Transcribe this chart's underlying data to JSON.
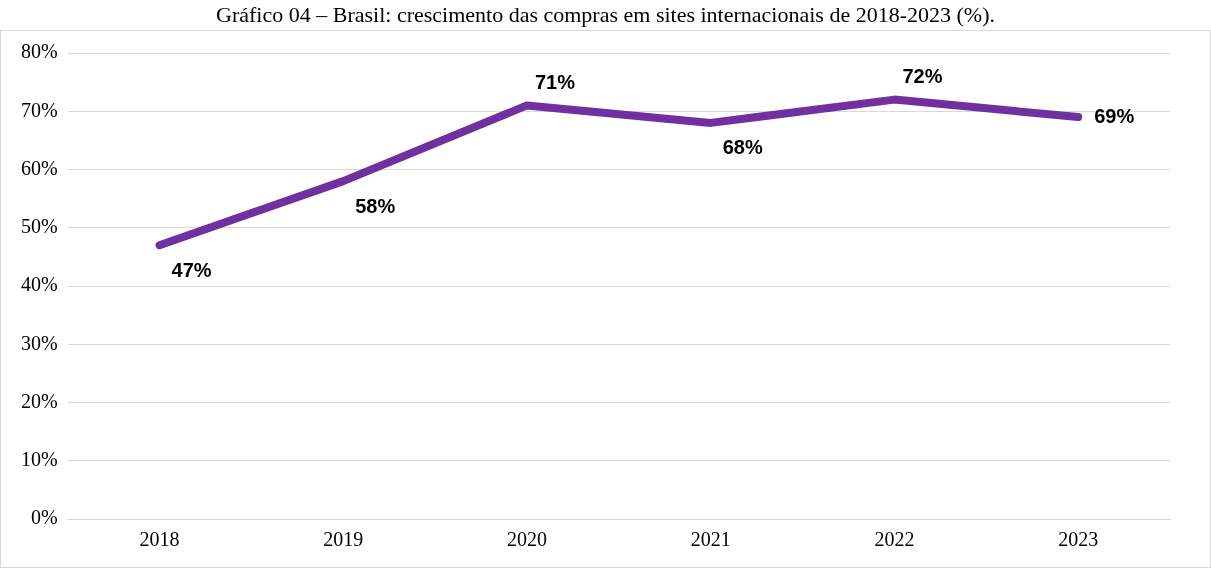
{
  "chart_data": {
    "type": "line",
    "title": "Gráfico 04 – Brasil: crescimento das compras em sites internacionais de 2018-2023 (%).",
    "categories": [
      "2018",
      "2019",
      "2020",
      "2021",
      "2022",
      "2023"
    ],
    "series": [
      {
        "color": "#7030a0",
        "values": [
          47,
          58,
          71,
          68,
          72,
          69
        ]
      }
    ],
    "value_labels": [
      "47%",
      "58%",
      "71%",
      "68%",
      "72%",
      "69%"
    ],
    "ylim": [
      0,
      80
    ],
    "yticks": [
      {
        "value": 0,
        "label": "0%"
      },
      {
        "value": 10,
        "label": "10%"
      },
      {
        "value": 20,
        "label": "20%"
      },
      {
        "value": 30,
        "label": "30%"
      },
      {
        "value": 40,
        "label": "40%"
      },
      {
        "value": 50,
        "label": "50%"
      },
      {
        "value": 60,
        "label": "60%"
      },
      {
        "value": 70,
        "label": "70%"
      },
      {
        "value": 80,
        "label": "80%"
      }
    ],
    "grid": "y",
    "legend": false,
    "marker": "none",
    "line_style": "solid"
  }
}
